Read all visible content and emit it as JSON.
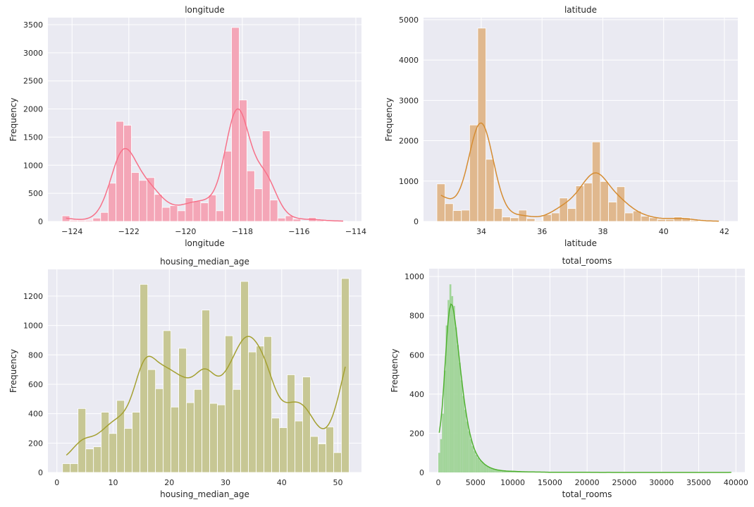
{
  "chart_data": [
    {
      "type": "bar",
      "title": "longitude",
      "xlabel": "longitude",
      "ylabel": "Frequency",
      "bar_color": "#f4a6b7",
      "line_color": "#f77189",
      "kde": true,
      "grid": true,
      "xlim": [
        -124.85,
        -113.8
      ],
      "ylim": [
        0,
        3625
      ],
      "xticks": [
        -124,
        -122,
        -120,
        -118,
        -116,
        -114
      ],
      "xtick_labels": [
        "−124",
        "−122",
        "−120",
        "−118",
        "−116",
        "−114"
      ],
      "yticks": [
        0,
        500,
        1000,
        1500,
        2000,
        2500,
        3000,
        3500
      ],
      "ytick_labels": [
        "0",
        "500",
        "1000",
        "1500",
        "2000",
        "2500",
        "3000",
        "3500"
      ],
      "bin_start": -124.35,
      "bin_end": -114.31,
      "counts": [
        100,
        20,
        20,
        20,
        60,
        160,
        680,
        1780,
        1710,
        870,
        730,
        780,
        480,
        250,
        280,
        190,
        420,
        360,
        330,
        470,
        190,
        1250,
        3450,
        2160,
        900,
        580,
        1610,
        380,
        60,
        100,
        40,
        5,
        70,
        20,
        10,
        5,
        5
      ]
    },
    {
      "type": "bar",
      "title": "latitude",
      "xlabel": "latitude",
      "ylabel": "Frequency",
      "bar_color": "#e0b88e",
      "line_color": "#d58c32",
      "kde": true,
      "grid": true,
      "xlim": [
        32.1,
        42.44
      ],
      "ylim": [
        0,
        5050
      ],
      "xticks": [
        34,
        36,
        38,
        40,
        42
      ],
      "xtick_labels": [
        "34",
        "36",
        "38",
        "40",
        "42"
      ],
      "yticks": [
        0,
        1000,
        2000,
        3000,
        4000,
        5000
      ],
      "ytick_labels": [
        "0",
        "1000",
        "2000",
        "3000",
        "4000",
        "5000"
      ],
      "bin_start": 32.54,
      "bin_end": 41.95,
      "counts": [
        930,
        440,
        270,
        280,
        2390,
        4790,
        1540,
        320,
        110,
        90,
        280,
        70,
        20,
        170,
        210,
        580,
        320,
        880,
        950,
        1970,
        990,
        480,
        860,
        210,
        260,
        130,
        90,
        50,
        50,
        110,
        90,
        30,
        10,
        5,
        5
      ]
    },
    {
      "type": "bar",
      "title": "housing_median_age",
      "xlabel": "housing_median_age",
      "ylabel": "Frequency",
      "bar_color": "#c7c794",
      "line_color": "#a4a031",
      "kde": true,
      "grid": true,
      "xlim": [
        -1.6,
        54.2
      ],
      "ylim": [
        0,
        1382
      ],
      "xticks": [
        0,
        10,
        20,
        30,
        40,
        50
      ],
      "xtick_labels": [
        "0",
        "10",
        "20",
        "30",
        "40",
        "50"
      ],
      "yticks": [
        0,
        200,
        400,
        600,
        800,
        1000,
        1200
      ],
      "ytick_labels": [
        "0",
        "200",
        "400",
        "600",
        "800",
        "1000",
        "1200"
      ],
      "bin_start": 1,
      "bin_end": 52,
      "counts": [
        60,
        60,
        435,
        160,
        175,
        410,
        265,
        490,
        300,
        410,
        1280,
        700,
        570,
        965,
        445,
        845,
        475,
        565,
        1105,
        470,
        460,
        930,
        565,
        1300,
        820,
        860,
        925,
        370,
        305,
        665,
        350,
        650,
        245,
        195,
        310,
        135,
        1320
      ]
    },
    {
      "type": "bar",
      "title": "total_rooms",
      "xlabel": "total_rooms",
      "ylabel": "Frequency",
      "bar_color": "#a2d59a",
      "line_color": "#50b131",
      "kde": true,
      "grid": true,
      "xlim": [
        -1230,
        41200
      ],
      "ylim": [
        0,
        1040
      ],
      "xticks": [
        0,
        5000,
        10000,
        15000,
        20000,
        25000,
        30000,
        35000,
        40000
      ],
      "xtick_labels": [
        "0",
        "5000",
        "10000",
        "15000",
        "20000",
        "25000",
        "30000",
        "35000",
        "40000"
      ],
      "yticks": [
        0,
        200,
        400,
        600,
        800,
        1000
      ],
      "ytick_labels": [
        "0",
        "200",
        "400",
        "600",
        "800",
        "1000"
      ],
      "bin_start": 0,
      "bin_end": 39500,
      "counts": [
        100,
        170,
        300,
        520,
        750,
        880,
        960,
        900,
        850,
        740,
        650,
        560,
        470,
        390,
        320,
        260,
        210,
        170,
        135,
        110,
        90,
        75,
        62,
        52,
        44,
        36,
        30,
        25,
        21,
        18,
        15,
        13,
        11,
        10,
        9,
        8,
        7,
        7,
        6,
        6,
        6,
        5,
        5,
        4,
        4,
        4,
        3,
        3,
        3,
        3,
        3,
        2,
        2,
        2,
        2,
        2,
        2,
        2,
        1,
        1,
        1,
        1,
        1,
        1,
        1,
        1,
        1,
        1,
        1,
        1,
        1,
        1,
        1,
        1,
        1,
        1,
        1,
        1,
        1,
        1,
        1,
        1,
        0,
        0,
        0,
        1,
        0,
        0,
        0,
        0,
        0,
        1,
        0,
        0,
        0,
        0,
        0,
        0,
        0,
        0,
        0,
        0,
        0,
        0,
        0,
        0,
        0,
        0,
        0,
        0,
        0,
        0,
        0,
        0,
        0,
        0,
        0,
        0,
        0,
        0,
        0,
        0,
        0,
        0,
        0,
        0,
        0,
        0,
        0,
        0,
        0,
        0,
        0,
        0,
        0,
        0,
        0,
        0,
        0,
        0,
        0,
        0,
        0,
        0,
        0,
        0,
        0,
        0,
        0,
        0,
        0,
        0,
        0,
        0,
        0,
        0,
        0,
        1
      ]
    }
  ]
}
